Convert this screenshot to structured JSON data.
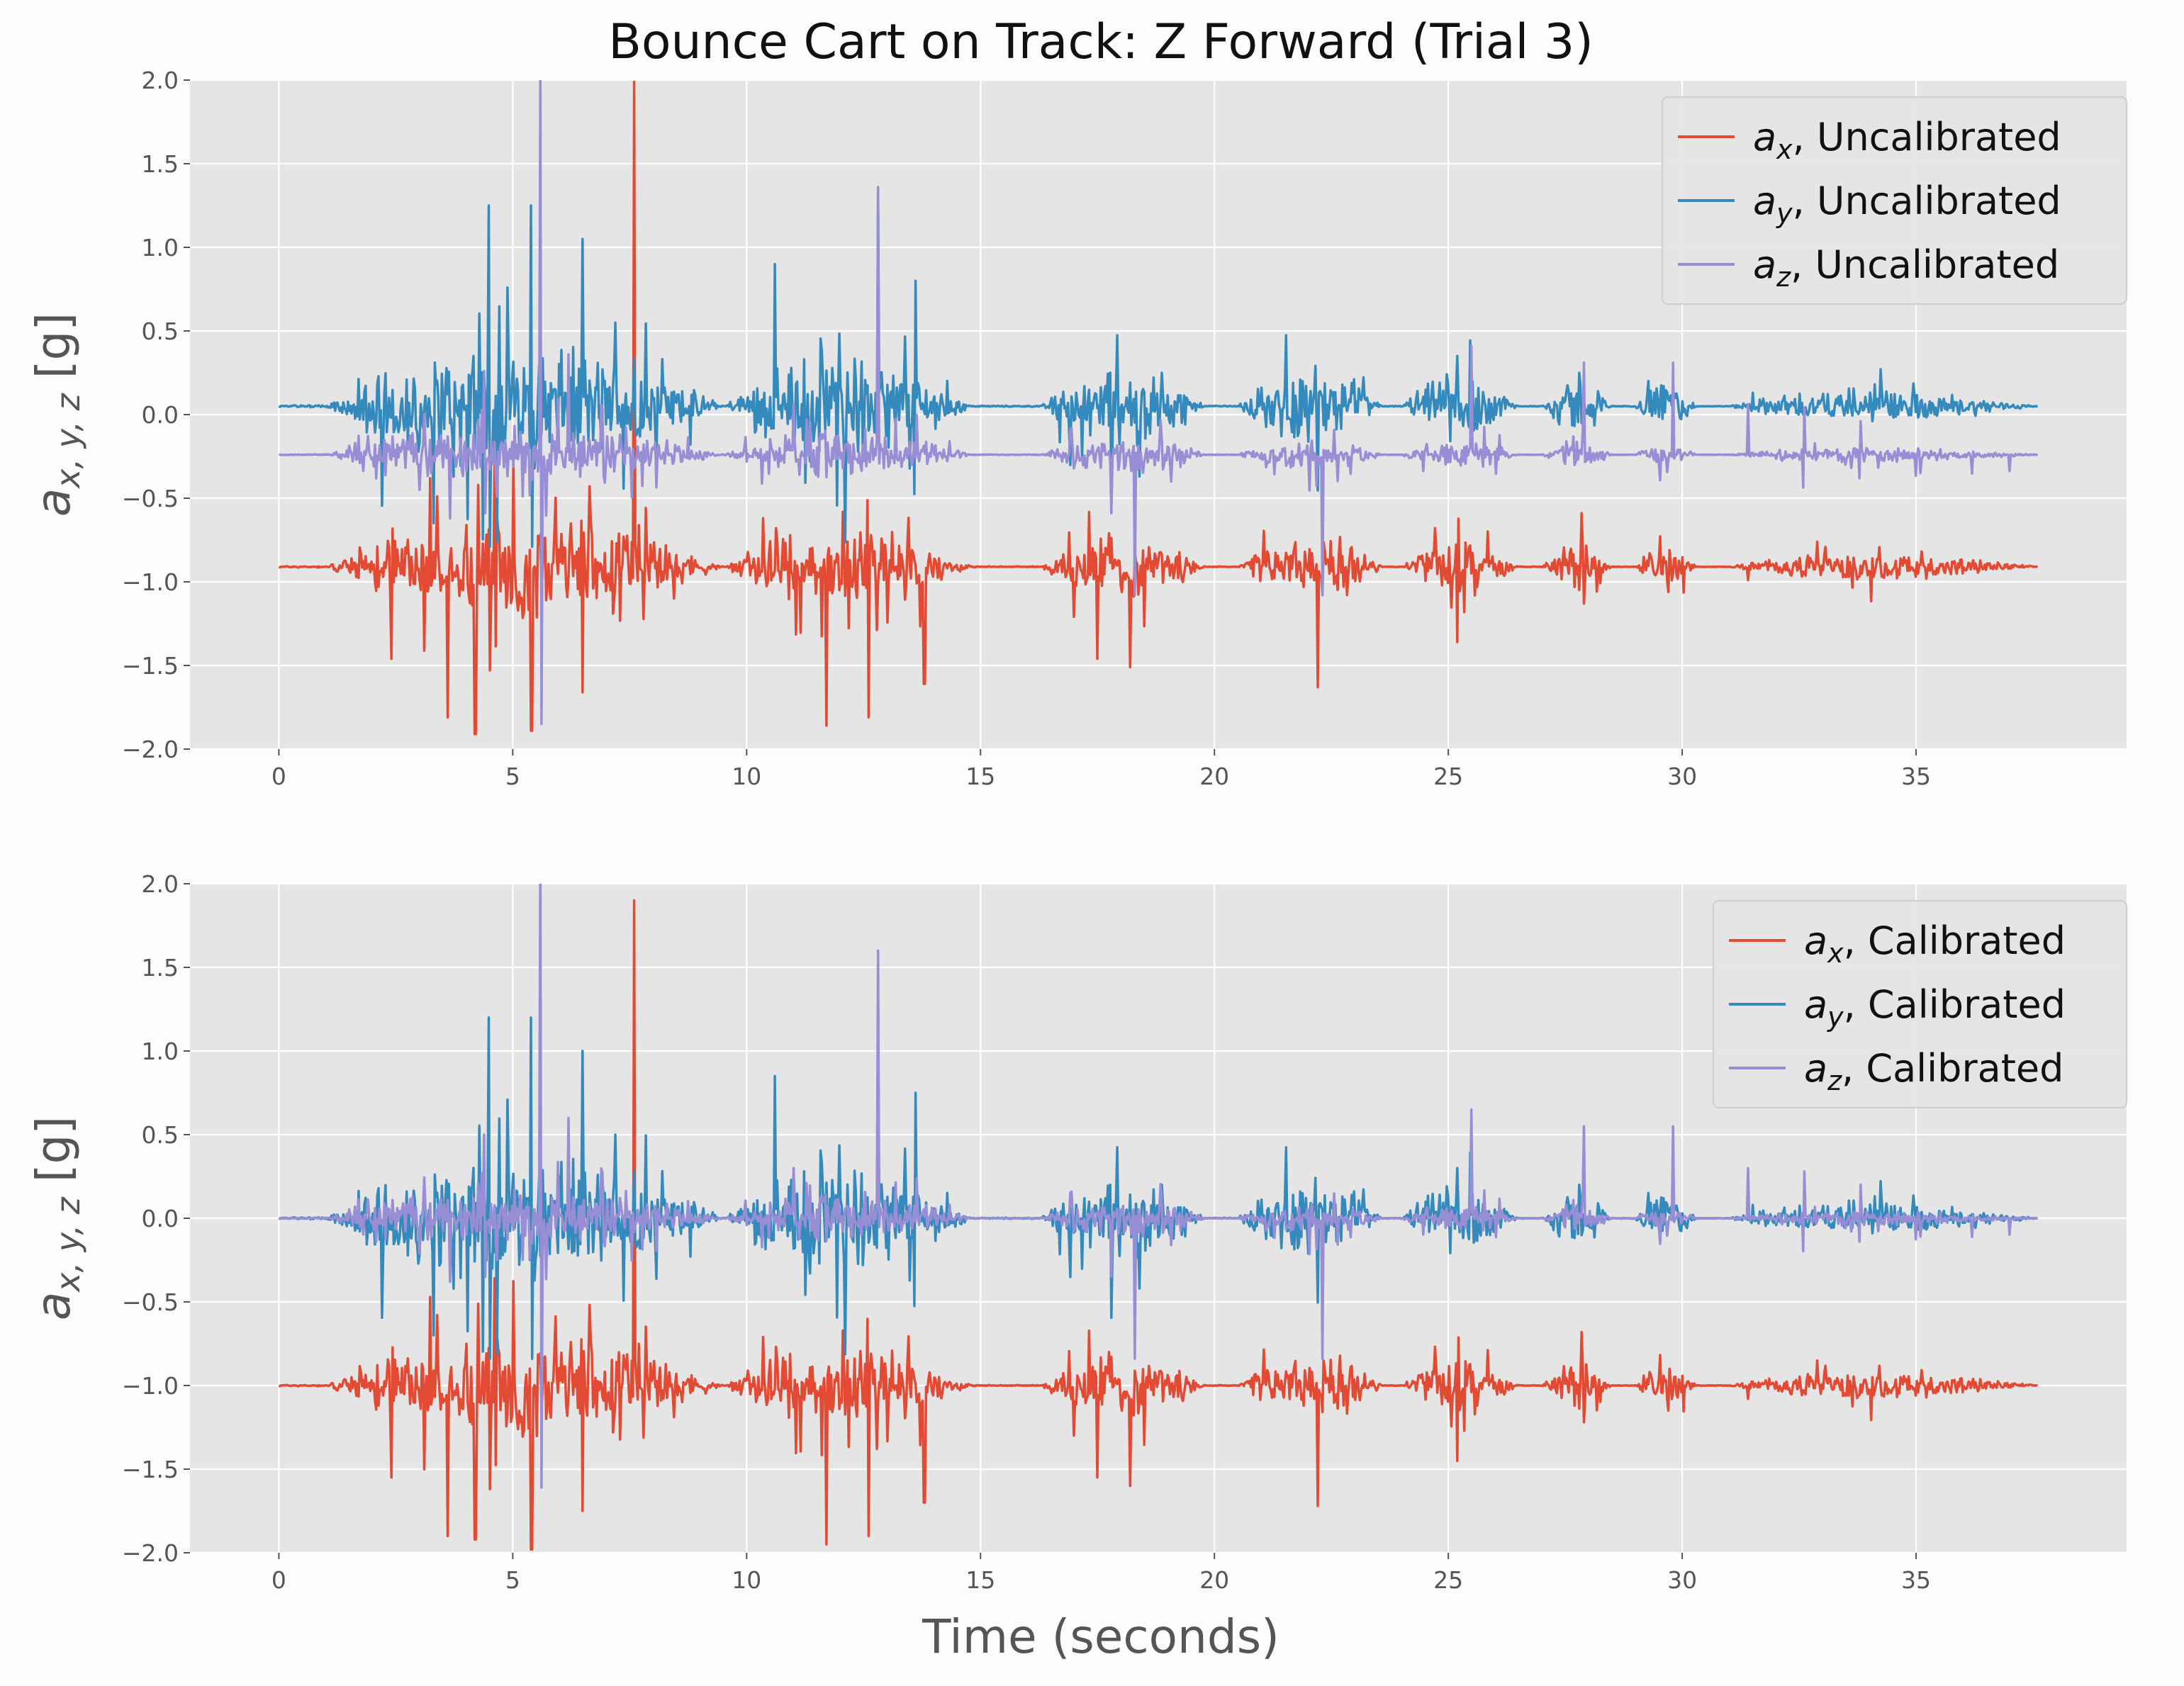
{
  "figure": {
    "title": "Bounce Cart on Track: Z Forward (Trial 3)",
    "xlabel": "Time (seconds)",
    "ylabel": "a_{x,y,z} [g]"
  },
  "chart_data": [
    {
      "type": "line",
      "panel": "top",
      "title": "Bounce Cart on Track: Z Forward (Trial 3)",
      "xlabel": "",
      "ylabel": "a_{x,y,z} [g]",
      "xlim": [
        -1.9,
        39.5
      ],
      "ylim": [
        -2.0,
        2.0
      ],
      "xticks": [
        0,
        5,
        10,
        15,
        20,
        25,
        30,
        35
      ],
      "yticks": [
        -2.0,
        -1.5,
        -1.0,
        -0.5,
        0.0,
        0.5,
        1.0,
        1.5,
        2.0
      ],
      "xtick_labels": [
        "0",
        "5",
        "10",
        "15",
        "20",
        "25",
        "30",
        "35"
      ],
      "ytick_labels": [
        "−2.0",
        "−1.5",
        "−1.0",
        "−0.5",
        "0.0",
        "0.5",
        "1.0",
        "1.5",
        "2.0"
      ],
      "grid": true,
      "legend_position": "top-right",
      "series": [
        {
          "name": "a_x, Uncalibrated",
          "var": "a",
          "sub": "x",
          "suffix": ", Uncalibrated",
          "color": "#e24a33",
          "baseline": -0.91,
          "peaks": [
            [
              2.4,
              0.55
            ],
            [
              3.6,
              0.9
            ],
            [
              4.2,
              1.0
            ],
            [
              5.4,
              0.98
            ],
            [
              6.5,
              0.75
            ],
            [
              7.6,
              2.9
            ],
            [
              11.7,
              0.95
            ],
            [
              12.6,
              0.9
            ],
            [
              13.8,
              0.7
            ],
            [
              17.5,
              0.55
            ],
            [
              18.2,
              0.6
            ],
            [
              22.2,
              0.72
            ],
            [
              25.2,
              0.45
            ],
            [
              27.9,
              0.22
            ],
            [
              29.7,
              0.15
            ],
            [
              31.4,
              0.08
            ],
            [
              33.5,
              0.06
            ],
            [
              36.0,
              0.04
            ]
          ]
        },
        {
          "name": "a_y, Uncalibrated",
          "var": "a",
          "sub": "y",
          "suffix": ", Uncalibrated",
          "color": "#348abd",
          "baseline": 0.05,
          "peaks": [
            [
              2.2,
              0.85
            ],
            [
              3.3,
              1.0
            ],
            [
              4.5,
              1.2
            ],
            [
              5.4,
              1.2
            ],
            [
              6.5,
              1.0
            ],
            [
              7.2,
              0.5
            ],
            [
              10.6,
              0.85
            ],
            [
              12.8,
              1.28
            ],
            [
              13.6,
              0.75
            ],
            [
              17.8,
              0.85
            ],
            [
              18.4,
              0.6
            ],
            [
              22.2,
              0.72
            ],
            [
              25.2,
              0.3
            ],
            [
              27.8,
              0.2
            ],
            [
              29.6,
              0.12
            ],
            [
              31.5,
              0.08
            ],
            [
              34.0,
              0.05
            ]
          ]
        },
        {
          "name": "a_z, Uncalibrated",
          "var": "a",
          "sub": "z",
          "suffix": ", Uncalibrated",
          "color": "#988ed5",
          "baseline": -0.24,
          "peaks": [
            [
              3.0,
              0.3
            ],
            [
              4.4,
              0.5
            ],
            [
              5.6,
              2.3
            ],
            [
              6.2,
              0.6
            ],
            [
              11.0,
              0.3
            ],
            [
              12.8,
              1.6
            ],
            [
              17.8,
              0.5
            ],
            [
              18.3,
              1.2
            ],
            [
              22.3,
              1.2
            ],
            [
              25.5,
              0.65
            ],
            [
              27.9,
              0.55
            ],
            [
              29.8,
              0.55
            ],
            [
              31.4,
              0.3
            ],
            [
              32.6,
              0.28
            ],
            [
              33.8,
              0.2
            ],
            [
              35.0,
              0.18
            ],
            [
              36.2,
              0.16
            ],
            [
              37.0,
              0.14
            ]
          ]
        }
      ]
    },
    {
      "type": "line",
      "panel": "bottom",
      "title": "",
      "xlabel": "Time (seconds)",
      "ylabel": "a_{x,y,z} [g]",
      "xlim": [
        -1.9,
        39.5
      ],
      "ylim": [
        -2.0,
        2.0
      ],
      "xticks": [
        0,
        5,
        10,
        15,
        20,
        25,
        30,
        35
      ],
      "yticks": [
        -2.0,
        -1.5,
        -1.0,
        -0.5,
        0.0,
        0.5,
        1.0,
        1.5,
        2.0
      ],
      "xtick_labels": [
        "0",
        "5",
        "10",
        "15",
        "20",
        "25",
        "30",
        "35"
      ],
      "ytick_labels": [
        "−2.0",
        "−1.5",
        "−1.0",
        "−0.5",
        "0.0",
        "0.5",
        "1.0",
        "1.5",
        "2.0"
      ],
      "grid": true,
      "legend_position": "top-right",
      "series": [
        {
          "name": "a_x, Calibrated",
          "var": "a",
          "sub": "x",
          "suffix": ", Calibrated",
          "color": "#e24a33",
          "baseline": -1.0,
          "peaks": [
            [
              2.4,
              0.55
            ],
            [
              3.6,
              0.9
            ],
            [
              4.2,
              0.92
            ],
            [
              5.4,
              0.98
            ],
            [
              6.5,
              0.75
            ],
            [
              7.6,
              2.9
            ],
            [
              11.7,
              0.95
            ],
            [
              12.6,
              0.9
            ],
            [
              13.8,
              0.7
            ],
            [
              17.5,
              0.55
            ],
            [
              18.2,
              0.6
            ],
            [
              22.2,
              0.72
            ],
            [
              25.2,
              0.45
            ],
            [
              27.9,
              0.22
            ],
            [
              29.7,
              0.15
            ],
            [
              31.4,
              0.08
            ],
            [
              33.5,
              0.06
            ],
            [
              36.0,
              0.04
            ]
          ]
        },
        {
          "name": "a_y, Calibrated",
          "var": "a",
          "sub": "y",
          "suffix": ", Calibrated",
          "color": "#348abd",
          "baseline": 0.0,
          "peaks": [
            [
              2.2,
              0.85
            ],
            [
              3.3,
              1.0
            ],
            [
              4.5,
              1.2
            ],
            [
              5.4,
              1.2
            ],
            [
              6.5,
              1.0
            ],
            [
              7.2,
              0.5
            ],
            [
              10.6,
              0.85
            ],
            [
              12.8,
              1.28
            ],
            [
              13.6,
              0.75
            ],
            [
              17.8,
              0.85
            ],
            [
              18.4,
              0.6
            ],
            [
              22.2,
              0.72
            ],
            [
              25.2,
              0.3
            ],
            [
              27.8,
              0.2
            ],
            [
              29.6,
              0.12
            ],
            [
              31.5,
              0.08
            ],
            [
              34.0,
              0.05
            ]
          ]
        },
        {
          "name": "a_z, Calibrated",
          "var": "a",
          "sub": "z",
          "suffix": ", Calibrated",
          "color": "#988ed5",
          "baseline": 0.0,
          "peaks": [
            [
              3.0,
              0.3
            ],
            [
              4.4,
              0.5
            ],
            [
              5.6,
              2.3
            ],
            [
              6.2,
              0.6
            ],
            [
              11.0,
              0.3
            ],
            [
              12.8,
              1.6
            ],
            [
              17.8,
              0.5
            ],
            [
              18.3,
              1.2
            ],
            [
              22.3,
              1.2
            ],
            [
              25.5,
              0.65
            ],
            [
              27.9,
              0.55
            ],
            [
              29.8,
              0.55
            ],
            [
              31.4,
              0.3
            ],
            [
              32.6,
              0.28
            ],
            [
              33.8,
              0.2
            ],
            [
              35.0,
              0.18
            ],
            [
              36.2,
              0.16
            ],
            [
              37.0,
              0.14
            ]
          ]
        }
      ]
    }
  ],
  "time_range": [
    0,
    37.6
  ],
  "bursts": [
    [
      1.0,
      9.5
    ],
    [
      9.5,
      14.8
    ],
    [
      16.3,
      19.8
    ],
    [
      20.5,
      23.6
    ],
    [
      24.0,
      26.5
    ],
    [
      27.0,
      28.5
    ],
    [
      29.0,
      30.3
    ],
    [
      31.0,
      37.6
    ]
  ]
}
